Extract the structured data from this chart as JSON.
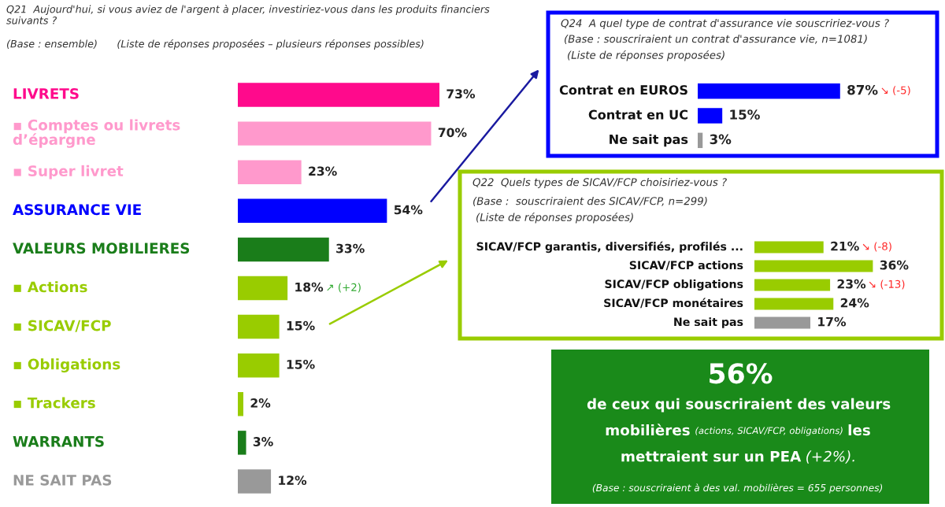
{
  "chart_data": [
    {
      "type": "bar",
      "orientation": "horizontal",
      "title": "Q21  Aujourd'hui, si vous aviez de l'argent à placer, investiriez-vous dans les produits financiers suivants ?",
      "subtitle": "(Base : ensemble)      (Liste de réponses proposées – plusieurs réponses possibles)",
      "categories": [
        "LIVRETS",
        "▪ Comptes ou livrets d’épargne",
        "▪ Super livret",
        "ASSURANCE VIE",
        "VALEURS MOBILIERES",
        "▪ Actions",
        "▪ SICAV/FCP",
        "▪ Obligations",
        "▪ Trackers",
        "WARRANTS",
        "NE SAIT PAS"
      ],
      "values": [
        73,
        70,
        23,
        54,
        33,
        18,
        15,
        15,
        2,
        3,
        12
      ],
      "colors": [
        "#ff0a8c",
        "#ff99cc",
        "#ff99cc",
        "#0000ff",
        "#1a7d1a",
        "#99cc00",
        "#99cc00",
        "#99cc00",
        "#99cc00",
        "#1a7d1a",
        "#999999"
      ],
      "value_labels": [
        "73%",
        "70%",
        "23%",
        "54%",
        "33%",
        "18%",
        "15%",
        "15%",
        "2%",
        "3%",
        "12%"
      ],
      "annotations": [
        "↗ (+2)"
      ]
    },
    {
      "type": "bar",
      "orientation": "horizontal",
      "title": "Q24  A quel type de contrat d'assurance vie souscririez-vous ?",
      "subtitle": "(Base : souscriraient un contrat d'assurance vie, n=1081)",
      "categories": [
        "Contrat en EUROS",
        "Contrat en UC",
        "Ne sait pas"
      ],
      "values": [
        87,
        15,
        3
      ],
      "colors": [
        "#0000ff",
        "#0000ff",
        "#999999"
      ],
      "value_labels": [
        "87%",
        "15%",
        "3%"
      ],
      "annotations": [
        "(Liste de réponses proposées)",
        "↘ (-5)"
      ]
    },
    {
      "type": "bar",
      "orientation": "horizontal",
      "title": "Q22  Quels types de SICAV/FCP choisiriez-vous ?",
      "subtitle": "(Base :  souscriraient des SICAV/FCP, n=299)",
      "categories": [
        "SICAV/FCP garantis, diversifiés, profilés ...",
        "SICAV/FCP actions",
        "SICAV/FCP obligations",
        "SICAV/FCP monétaires",
        "Ne sait pas"
      ],
      "values": [
        21,
        36,
        23,
        24,
        17
      ],
      "colors": [
        "#99cc00",
        "#99cc00",
        "#99cc00",
        "#99cc00",
        "#999999"
      ],
      "value_labels": [
        "21%",
        "36%",
        "23%",
        "24%",
        "17%"
      ],
      "annotations": [
        "(Liste de réponses proposées)",
        "↘ (-8)",
        "↘ (-13)"
      ]
    },
    {
      "type": "other",
      "title": "56%",
      "annotations": [
        "de ceux qui souscriraient des valeurs",
        "mobilières",
        "(actions, SICAV/FCP, obligations)",
        "les",
        "mettraient sur un PEA",
        "(+2%).",
        "(Base : souscriraient à des val. mobilières = 655 personnes)"
      ]
    }
  ]
}
